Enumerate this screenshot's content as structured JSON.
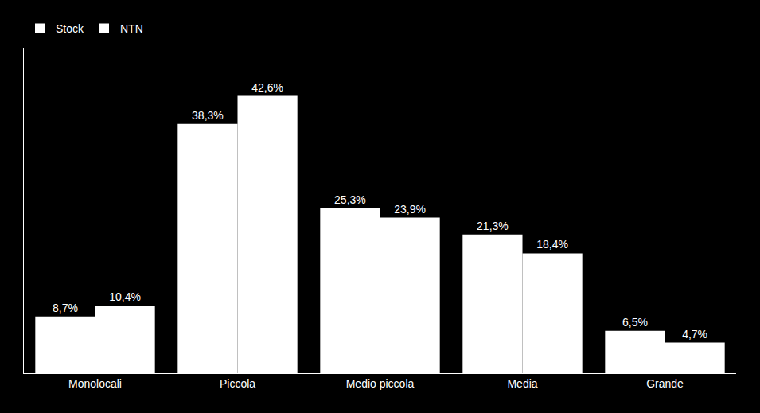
{
  "chart_data": {
    "type": "bar",
    "categories": [
      "Monolocali",
      "Piccola",
      "Medio piccola",
      "Media",
      "Grande"
    ],
    "series": [
      {
        "name": "Stock",
        "color": "#ffffff",
        "values": [
          8.7,
          38.3,
          25.3,
          21.3,
          6.5
        ],
        "value_labels": [
          "8,7%",
          "38,3%",
          "25,3%",
          "21,3%",
          "6,5%"
        ]
      },
      {
        "name": "NTN",
        "color": "#ffffff",
        "values": [
          10.4,
          42.6,
          23.9,
          18.4,
          4.7
        ],
        "value_labels": [
          "10,4%",
          "42,6%",
          "23,9%",
          "18,4%",
          "4,7%"
        ]
      }
    ],
    "ylim": [
      0,
      50
    ],
    "grid": false,
    "legend": "upper left",
    "data_labels": true,
    "tick_labels": "x"
  }
}
